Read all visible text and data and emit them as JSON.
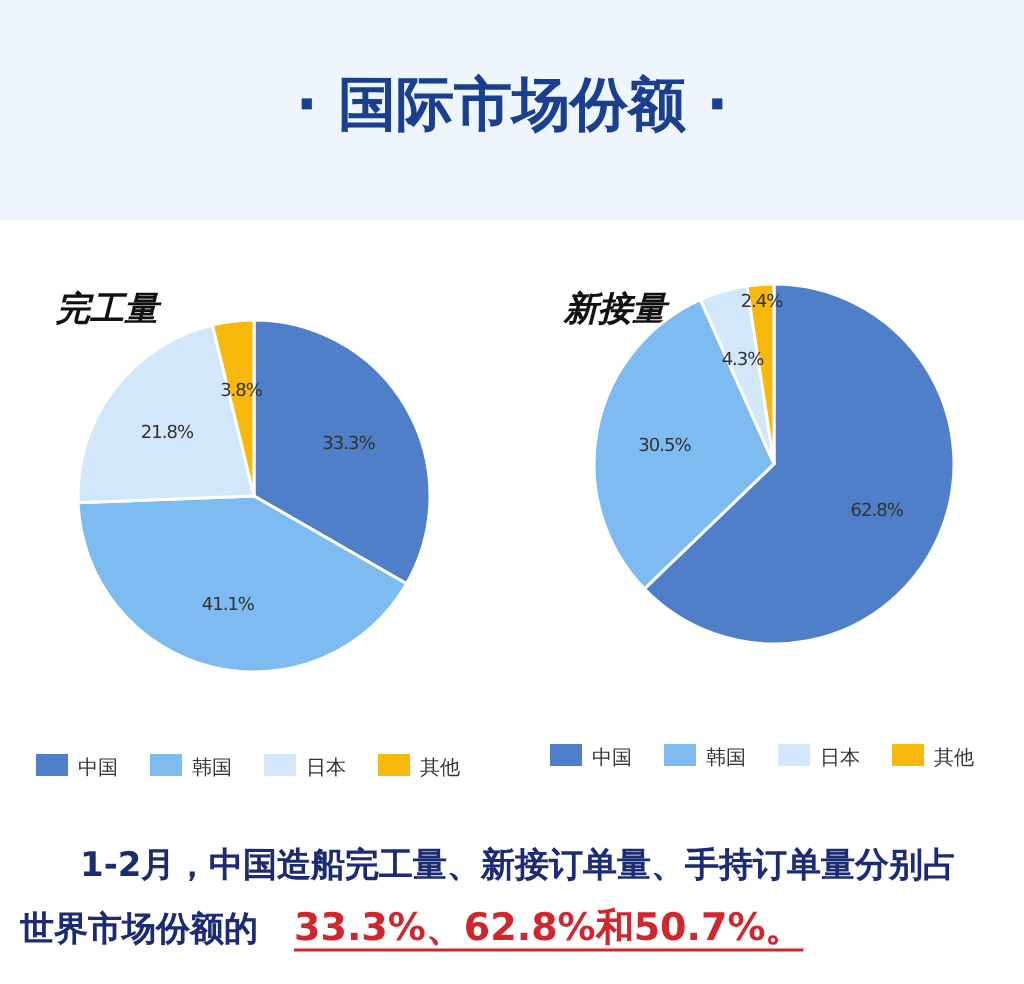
{
  "chart_data": [
    {
      "type": "other",
      "title": "· 国际市场份额 ·",
      "annotations": [
        "1-2月，中国造船完工量、新接订单量、手持订单量分别占",
        "世界市场份额的",
        "33.3%、62.8%和50.7%。"
      ]
    },
    {
      "type": "pie",
      "title": "完工量",
      "categories": [
        "中国",
        "韩国",
        "日本",
        "其他"
      ],
      "values": [
        33.3,
        41.1,
        21.8,
        3.8
      ],
      "value_labels": [
        "33.3%",
        "41.1%",
        "21.8%",
        "3.8%"
      ],
      "colors": [
        "#4f7fc8",
        "#7dbbf0",
        "#d3e7fa",
        "#f7b90c"
      ],
      "legend": "bottom"
    },
    {
      "type": "pie",
      "title": "新接量",
      "categories": [
        "中国",
        "韩国",
        "日本",
        "其他"
      ],
      "values": [
        62.8,
        30.5,
        4.3,
        2.4
      ],
      "value_labels": [
        "62.8%",
        "30.5%",
        "4.3%",
        "2.4%"
      ],
      "colors": [
        "#4f7fc8",
        "#7dbbf0",
        "#d3e7fa",
        "#f7b90c"
      ],
      "legend": "bottom"
    }
  ]
}
